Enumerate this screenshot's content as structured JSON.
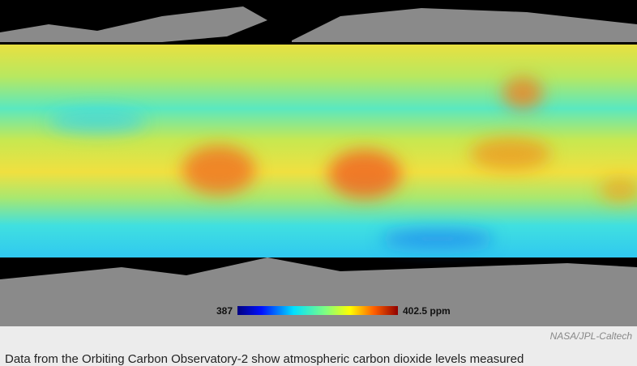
{
  "map": {
    "colorbar": {
      "min_label": "387",
      "max_label": "402.5 ppm"
    }
  },
  "credit": "NASA/JPL-Caltech",
  "caption": "Data from the Orbiting Carbon Observatory-2 show atmospheric carbon dioxide levels measured"
}
